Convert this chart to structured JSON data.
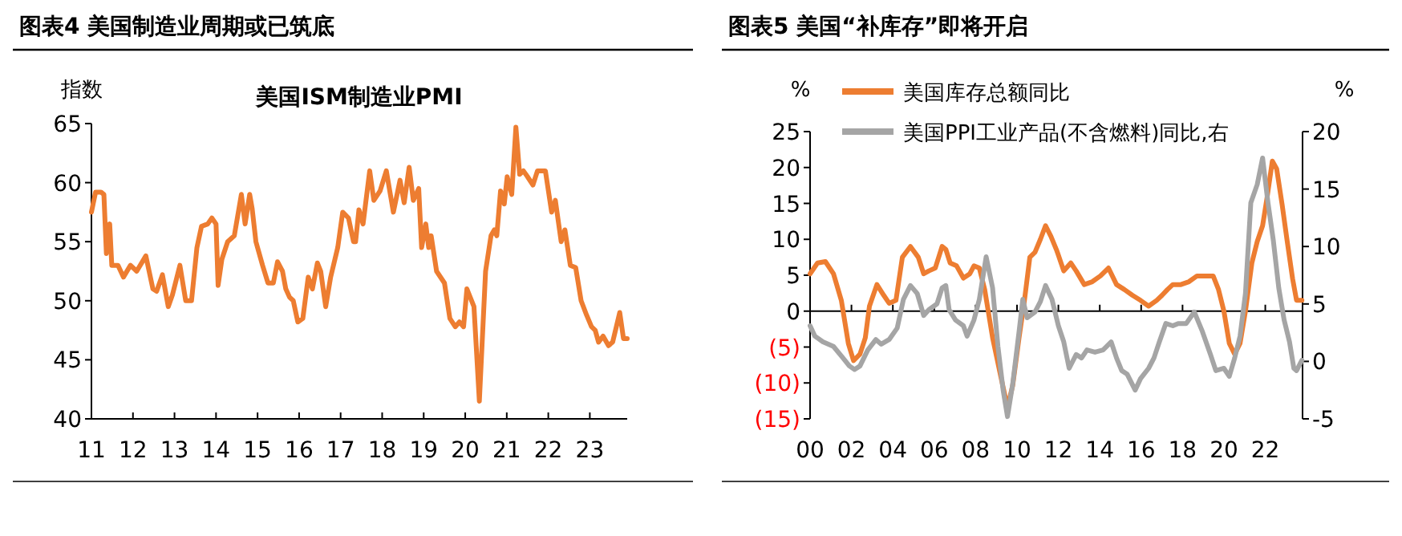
{
  "chart_data": [
    {
      "type": "line",
      "title": "图表4    美国制造业周期或已筑底",
      "subtitle": "美国ISM制造业PMI",
      "ylabel": "指数",
      "xlim": [
        2011,
        2023.9
      ],
      "xticks": [
        {
          "value": 2011,
          "label": "11"
        },
        {
          "value": 2012,
          "label": "12"
        },
        {
          "value": 2013,
          "label": "13"
        },
        {
          "value": 2014,
          "label": "14"
        },
        {
          "value": 2015,
          "label": "15"
        },
        {
          "value": 2016,
          "label": "16"
        },
        {
          "value": 2017,
          "label": "17"
        },
        {
          "value": 2018,
          "label": "18"
        },
        {
          "value": 2019,
          "label": "19"
        },
        {
          "value": 2020,
          "label": "20"
        },
        {
          "value": 2021,
          "label": "21"
        },
        {
          "value": 2022,
          "label": "22"
        },
        {
          "value": 2023,
          "label": "23"
        }
      ],
      "ylim": [
        40,
        65
      ],
      "yticks": [
        40,
        45,
        50,
        55,
        60,
        65
      ],
      "series": [
        {
          "color": "#ed7d31",
          "x": [
            2011.0,
            2011.1,
            2011.23,
            2011.3,
            2011.36,
            2011.44,
            2011.49,
            2011.64,
            2011.77,
            2011.94,
            2012.09,
            2012.31,
            2012.48,
            2012.57,
            2012.71,
            2012.85,
            2012.95,
            2013.13,
            2013.27,
            2013.41,
            2013.54,
            2013.65,
            2013.8,
            2013.9,
            2014.0,
            2014.05,
            2014.14,
            2014.28,
            2014.44,
            2014.61,
            2014.7,
            2014.81,
            2014.87,
            2014.96,
            2015.12,
            2015.25,
            2015.38,
            2015.48,
            2015.6,
            2015.68,
            2015.77,
            2015.86,
            2015.97,
            2016.09,
            2016.22,
            2016.32,
            2016.44,
            2016.52,
            2016.64,
            2016.76,
            2016.93,
            2017.05,
            2017.19,
            2017.31,
            2017.36,
            2017.44,
            2017.54,
            2017.7,
            2017.8,
            2017.95,
            2018.1,
            2018.27,
            2018.43,
            2018.53,
            2018.65,
            2018.75,
            2018.88,
            2018.95,
            2019.05,
            2019.12,
            2019.18,
            2019.31,
            2019.5,
            2019.63,
            2019.76,
            2019.86,
            2019.96,
            2020.04,
            2020.21,
            2020.34,
            2020.49,
            2020.62,
            2020.7,
            2020.76,
            2020.85,
            2020.94,
            2021.01,
            2021.12,
            2021.22,
            2021.31,
            2021.4,
            2021.5,
            2021.63,
            2021.74,
            2021.93,
            2022.08,
            2022.17,
            2022.31,
            2022.4,
            2022.53,
            2022.66,
            2022.79,
            2022.92,
            2023.04,
            2023.13,
            2023.21,
            2023.32,
            2023.45,
            2023.55,
            2023.72,
            2023.81,
            2023.9
          ],
          "values": [
            57.5,
            59.2,
            59.2,
            59,
            54,
            56.5,
            53,
            53,
            52,
            53,
            52.5,
            53.8,
            51,
            50.8,
            52.2,
            49.5,
            50.5,
            53,
            50,
            50,
            54.5,
            56.3,
            56.5,
            57,
            56.5,
            51.3,
            53.5,
            55,
            55.5,
            59,
            56.5,
            59,
            57.8,
            55,
            53,
            51.5,
            51.5,
            53.3,
            52.5,
            51,
            50.3,
            50,
            48.2,
            48.5,
            52,
            51,
            53.2,
            52.5,
            49.5,
            52,
            54.5,
            57.5,
            57,
            55,
            55,
            57.7,
            56.5,
            61,
            58.5,
            59.3,
            61,
            57.5,
            60.2,
            58.3,
            61.3,
            58.5,
            59.5,
            54.5,
            56.5,
            54.5,
            55.5,
            52.5,
            51.5,
            48.5,
            47.8,
            48.2,
            47.8,
            51,
            49.5,
            41.5,
            52.5,
            55.5,
            56,
            55.5,
            59.3,
            58.2,
            60.5,
            59,
            64.7,
            60.7,
            61,
            60.5,
            59.8,
            61,
            61,
            57.5,
            58.5,
            55,
            56,
            53,
            52.8,
            50,
            48.8,
            47.8,
            47.5,
            46.5,
            47,
            46.2,
            46.5,
            49,
            46.8,
            46.8
          ]
        }
      ]
    },
    {
      "type": "line",
      "title": "图表5    美国“补库存”即将开启",
      "ylabel": "%",
      "y2label": "%",
      "legend": "top",
      "xlim": [
        2000,
        2023.8
      ],
      "xticks": [
        {
          "value": 2000,
          "label": "00"
        },
        {
          "value": 2002,
          "label": "02"
        },
        {
          "value": 2004,
          "label": "04"
        },
        {
          "value": 2006,
          "label": "06"
        },
        {
          "value": 2008,
          "label": "08"
        },
        {
          "value": 2010,
          "label": "10"
        },
        {
          "value": 2012,
          "label": "12"
        },
        {
          "value": 2014,
          "label": "14"
        },
        {
          "value": 2016,
          "label": "16"
        },
        {
          "value": 2018,
          "label": "18"
        },
        {
          "value": 2020,
          "label": "20"
        },
        {
          "value": 2022,
          "label": "22"
        }
      ],
      "ylim": [
        -15,
        25
      ],
      "yticks": [
        {
          "value": -15,
          "label": "(15)"
        },
        {
          "value": -10,
          "label": "(10)"
        },
        {
          "value": -5,
          "label": "(5)"
        },
        0,
        5,
        10,
        15,
        20,
        25
      ],
      "y2lim": [
        -5,
        20
      ],
      "y2ticks": [
        -5,
        0,
        5,
        10,
        15,
        20
      ],
      "series": [
        {
          "name": "美国库存总额同比",
          "color": "#ed7d31",
          "x": [
            2000,
            2000.36,
            2000.74,
            2001.13,
            2001.51,
            2001.85,
            2002.1,
            2002.41,
            2002.67,
            2002.87,
            2003.23,
            2003.56,
            2003.82,
            2004.15,
            2004.46,
            2004.85,
            2005.23,
            2005.49,
            2005.74,
            2006.05,
            2006.38,
            2006.56,
            2006.77,
            2007.08,
            2007.41,
            2007.72,
            2007.92,
            2008.18,
            2008.44,
            2008.82,
            2009.21,
            2009.54,
            2009.79,
            2010.1,
            2010.36,
            2010.62,
            2010.87,
            2011.13,
            2011.38,
            2011.64,
            2011.9,
            2012.0,
            2012.26,
            2012.6,
            2012.86,
            2013.25,
            2013.64,
            2014.03,
            2014.42,
            2014.81,
            2015.19,
            2015.58,
            2015.97,
            2016.36,
            2016.75,
            2017.01,
            2017.27,
            2017.53,
            2017.92,
            2018.31,
            2018.7,
            2019.09,
            2019.48,
            2019.74,
            2020.0,
            2020.26,
            2020.52,
            2020.78,
            2021.04,
            2021.35,
            2021.61,
            2021.87,
            2022.08,
            2022.34,
            2022.55,
            2022.81,
            2023.06,
            2023.32,
            2023.51,
            2023.77
          ],
          "values": [
            5.2,
            6.7,
            6.9,
            5.2,
            1.5,
            -4.5,
            -6.9,
            -6,
            -3.7,
            0.7,
            3.7,
            2.2,
            1.1,
            1.5,
            7.5,
            9,
            7.5,
            5.2,
            5.6,
            6,
            9,
            8.6,
            6.7,
            6.3,
            4.6,
            5.2,
            6.3,
            6,
            3,
            -3.7,
            -9,
            -13.4,
            -10.4,
            -3.7,
            1.5,
            7.5,
            8.2,
            10,
            11.9,
            10.4,
            8.6,
            7.8,
            5.6,
            6.7,
            5.6,
            3.7,
            4.1,
            4.9,
            6,
            3.7,
            3,
            2.2,
            1.5,
            0.7,
            1.5,
            2.2,
            3,
            3.7,
            3.7,
            4.1,
            4.9,
            4.9,
            4.9,
            3,
            0,
            -4.5,
            -6,
            -4.5,
            0,
            6.7,
            9.7,
            11.9,
            15.7,
            20.9,
            19.8,
            14.9,
            9.7,
            4.5,
            1.5,
            1.5
          ]
        },
        {
          "name": "美国PPI工业产品(不含燃料)同比,右",
          "color": "#a5a5a5",
          "axis": "y2",
          "x": [
            2000,
            2000.23,
            2000.62,
            2001.13,
            2001.59,
            2001.9,
            2002.15,
            2002.41,
            2002.79,
            2003.18,
            2003.44,
            2003.82,
            2004.21,
            2004.51,
            2004.85,
            2005.18,
            2005.49,
            2005.74,
            2006.13,
            2006.38,
            2006.56,
            2006.72,
            2007.03,
            2007.41,
            2007.59,
            2007.92,
            2008.18,
            2008.51,
            2008.82,
            2009.08,
            2009.33,
            2009.54,
            2009.79,
            2010.1,
            2010.28,
            2010.49,
            2010.87,
            2011.13,
            2011.38,
            2011.69,
            2012.0,
            2012.26,
            2012.52,
            2012.86,
            2013.12,
            2013.38,
            2013.77,
            2014.16,
            2014.55,
            2014.81,
            2015.06,
            2015.32,
            2015.71,
            2015.97,
            2016.36,
            2016.62,
            2016.88,
            2017.19,
            2017.53,
            2017.79,
            2018.18,
            2018.57,
            2018.96,
            2019.35,
            2019.61,
            2020.0,
            2020.26,
            2020.52,
            2020.78,
            2021.04,
            2021.3,
            2021.61,
            2021.87,
            2022.13,
            2022.39,
            2022.65,
            2022.91,
            2023.17,
            2023.38,
            2023.51,
            2023.77
          ],
          "values": [
            3.1,
            2.2,
            1.7,
            1.3,
            0.3,
            -0.4,
            -0.7,
            -0.4,
            1,
            1.9,
            1.5,
            1.9,
            2.9,
            5.4,
            6.6,
            5.9,
            4,
            4.5,
            5,
            6.4,
            6.6,
            4.5,
            3.6,
            3.1,
            2.2,
            3.6,
            5.4,
            9.1,
            6.4,
            1.3,
            -2.5,
            -4.8,
            -2,
            2.6,
            5.4,
            3.8,
            4.3,
            5.2,
            6.6,
            5.4,
            3.1,
            1.7,
            -0.6,
            0.6,
            0.3,
            1,
            0.8,
            1,
            1.7,
            0.3,
            -0.8,
            -1.1,
            -2.5,
            -1.5,
            -0.6,
            0.3,
            1.7,
            3.3,
            3.1,
            3.3,
            3.3,
            4.3,
            2.6,
            0.6,
            -0.8,
            -0.6,
            -1.3,
            0.3,
            2.2,
            5.9,
            13.8,
            15.4,
            17.7,
            13.8,
            10.5,
            6.4,
            3.6,
            1.7,
            -0.6,
            -0.8,
            0.1
          ]
        }
      ]
    }
  ]
}
